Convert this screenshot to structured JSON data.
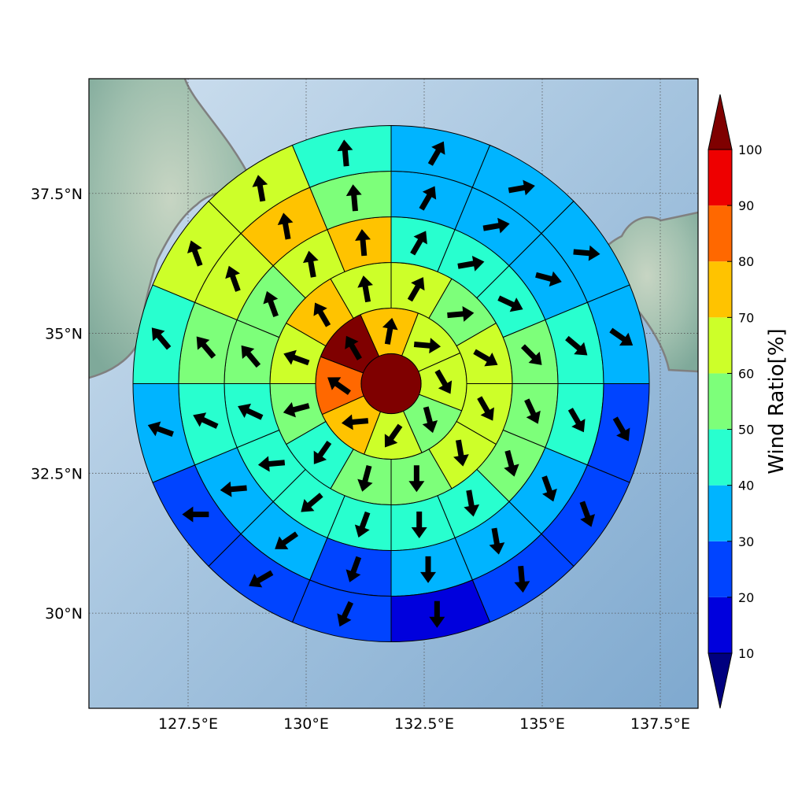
{
  "chart_data": {
    "type": "heatmap",
    "projection": "map, lon/lat",
    "xlim": [
      125.4,
      138.3
    ],
    "ylim": [
      28.3,
      39.55
    ],
    "x_ticks": [
      127.5,
      130,
      132.5,
      135,
      137.5
    ],
    "x_tick_labels": [
      "127.5°E",
      "130°E",
      "132.5°E",
      "135°E",
      "137.5°E"
    ],
    "y_ticks": [
      30,
      32.5,
      35,
      37.5
    ],
    "y_tick_labels": [
      "30°N",
      "32.5°N",
      "35°N",
      "37.5°N"
    ],
    "grid": "dotted",
    "colorbar": {
      "label": "Wind Ratio[%]",
      "ticks": [
        10,
        20,
        30,
        40,
        50,
        60,
        70,
        80,
        90,
        100
      ],
      "extend": "both",
      "colors": [
        "#00007f",
        "#0000dd",
        "#0044ff",
        "#00b4ff",
        "#28ffcf",
        "#7dff7a",
        "#cdff29",
        "#ffc300",
        "#ff6800",
        "#ee0000",
        "#7f0000"
      ]
    },
    "center": {
      "lon": 131.8,
      "lat": 34.1,
      "value": 100
    },
    "rings": [
      {
        "sector_deg": 45,
        "values": [
          75,
          60,
          60,
          55,
          60,
          70,
          85,
          100
        ],
        "wind_dir_deg": [
          10,
          95,
          150,
          165,
          215,
          265,
          305,
          330
        ]
      },
      {
        "sector_deg": 30,
        "values": [
          60,
          55,
          60,
          60,
          60,
          55,
          55,
          45,
          55,
          60,
          70,
          65
        ],
        "wind_dir_deg": [
          30,
          85,
          120,
          150,
          170,
          180,
          195,
          215,
          255,
          290,
          330,
          350
        ]
      },
      {
        "sector_deg": 22.5,
        "values": [
          45,
          45,
          45,
          50,
          55,
          50,
          45,
          45,
          45,
          40,
          40,
          40,
          50,
          55,
          60,
          70
        ],
        "wind_dir_deg": [
          30,
          80,
          115,
          135,
          155,
          165,
          170,
          180,
          200,
          230,
          265,
          295,
          320,
          340,
          350,
          355
        ]
      },
      {
        "sector_deg": 22.5,
        "values": [
          35,
          35,
          35,
          45,
          40,
          35,
          35,
          35,
          25,
          35,
          35,
          40,
          50,
          60,
          70,
          55
        ],
        "wind_dir_deg": [
          30,
          80,
          105,
          130,
          150,
          160,
          170,
          180,
          200,
          235,
          265,
          295,
          320,
          340,
          350,
          355
        ]
      },
      {
        "sector_deg": 22.5,
        "values": [
          35,
          35,
          35,
          35,
          25,
          25,
          20,
          15,
          20,
          25,
          25,
          35,
          40,
          60,
          65,
          45
        ],
        "wind_dir_deg": [
          30,
          80,
          95,
          125,
          150,
          160,
          175,
          180,
          205,
          240,
          270,
          290,
          320,
          340,
          350,
          355
        ]
      }
    ]
  },
  "colorbar_text": {
    "label": "Wind Ratio[%]",
    "ticks": [
      "10",
      "20",
      "30",
      "40",
      "50",
      "60",
      "70",
      "80",
      "90",
      "100"
    ]
  }
}
